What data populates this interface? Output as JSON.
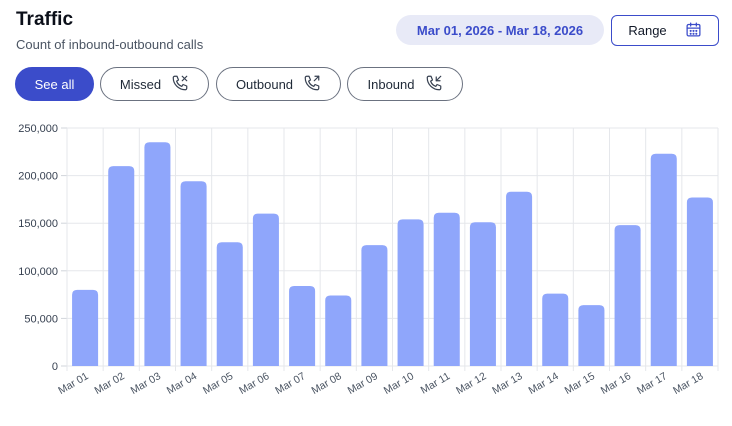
{
  "header": {
    "title": "Traffic",
    "subtitle": "Count of inbound-outbound calls",
    "date_range": "Mar 01, 2026 - Mar 18, 2026",
    "range_label": "Range",
    "range_icon": "calendar-icon"
  },
  "filters": [
    {
      "label": "See all",
      "active": true,
      "icon": ""
    },
    {
      "label": "Missed",
      "active": false,
      "icon": "phone-missed-icon"
    },
    {
      "label": "Outbound",
      "active": false,
      "icon": "phone-outgoing-icon"
    },
    {
      "label": "Inbound",
      "active": false,
      "icon": "phone-incoming-icon"
    }
  ],
  "colors": {
    "accent": "#3b4cca",
    "bar": "#8fa6fb",
    "grid": "#e5e7eb"
  },
  "chart_data": {
    "type": "bar",
    "categories": [
      "Mar 01",
      "Mar 02",
      "Mar 03",
      "Mar 04",
      "Mar 05",
      "Mar 06",
      "Mar 07",
      "Mar 08",
      "Mar 09",
      "Mar 10",
      "Mar 11",
      "Mar 12",
      "Mar 13",
      "Mar 14",
      "Mar 15",
      "Mar 16",
      "Mar 17",
      "Mar 18"
    ],
    "values": [
      80000,
      210000,
      235000,
      194000,
      130000,
      160000,
      84000,
      74000,
      127000,
      154000,
      161000,
      151000,
      183000,
      76000,
      64000,
      148000,
      223000,
      177000
    ],
    "yticks": [
      0,
      50000,
      100000,
      150000,
      200000,
      250000
    ],
    "ytick_labels": [
      "0",
      "50,000",
      "100,000",
      "150,000",
      "200,000",
      "250,000"
    ],
    "ylim": [
      0,
      250000
    ],
    "title": "",
    "xlabel": "",
    "ylabel": "",
    "grid": true,
    "legend": false
  }
}
